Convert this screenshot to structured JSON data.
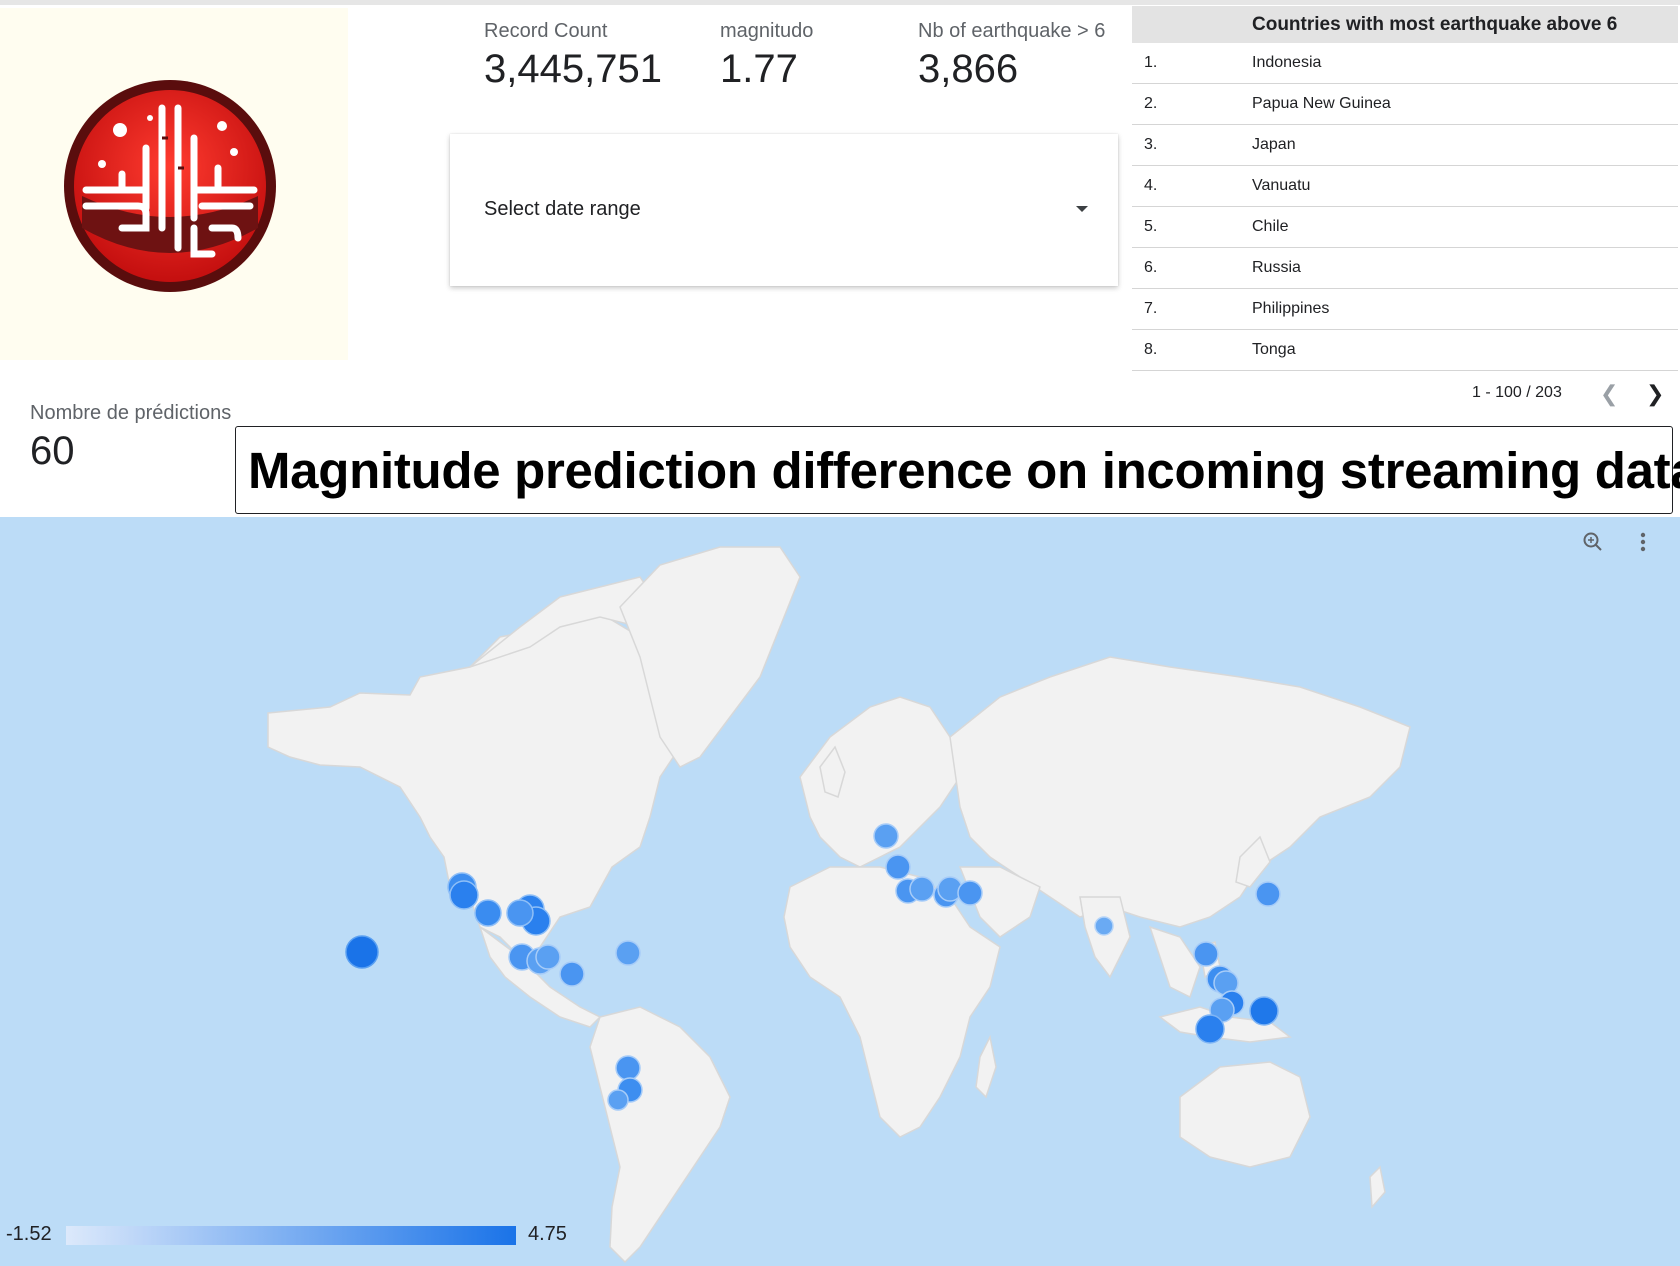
{
  "kpis": {
    "record_count": {
      "label": "Record Count",
      "value": "3,445,751"
    },
    "magnitudo": {
      "label": "magnitudo",
      "value": "1.77"
    },
    "nb_earthquake": {
      "label": "Nb of earthquake > 6",
      "value": "3,866"
    },
    "predictions": {
      "label": "Nombre de prédictions",
      "value": "60"
    }
  },
  "date_range": {
    "label": "Select date range"
  },
  "table": {
    "header": "Countries with most earthquake above 6",
    "rows": [
      {
        "num": "1.",
        "country": "Indonesia"
      },
      {
        "num": "2.",
        "country": "Papua New Guinea"
      },
      {
        "num": "3.",
        "country": "Japan"
      },
      {
        "num": "4.",
        "country": "Vanuatu"
      },
      {
        "num": "5.",
        "country": "Chile"
      },
      {
        "num": "6.",
        "country": "Russia"
      },
      {
        "num": "7.",
        "country": "Philippines"
      },
      {
        "num": "8.",
        "country": "Tonga"
      }
    ],
    "pagination": "1 - 100 / 203"
  },
  "title": "Magnitude prediction difference  on incoming streaming data",
  "map": {
    "legend_min": "-1.52",
    "legend_max": "4.75",
    "colors": {
      "ocean": "#bcdcf7",
      "land": "#f2f2f2",
      "bubble": "#1a73e8"
    }
  }
}
